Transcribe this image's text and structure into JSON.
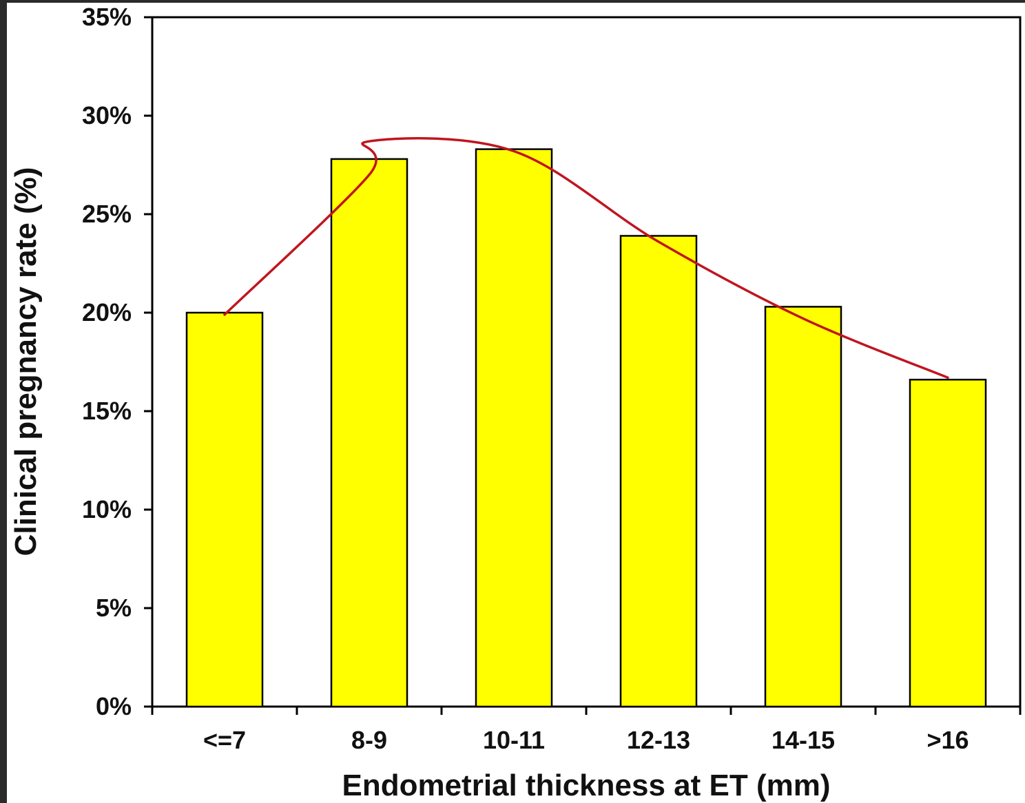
{
  "chart_data": {
    "type": "bar",
    "title": "",
    "xlabel": "Endometrial thickness at ET (mm)",
    "ylabel": "Clinical pregnancy rate (%)",
    "categories": [
      "<=7",
      "8-9",
      "10-11",
      "12-13",
      "14-15",
      ">16"
    ],
    "values": [
      20.0,
      27.8,
      28.3,
      23.9,
      20.3,
      16.6
    ],
    "ylim": [
      0,
      35
    ],
    "yticks": [
      0,
      5,
      10,
      15,
      20,
      25,
      30,
      35
    ],
    "ytick_labels": [
      "0%",
      "5%",
      "10%",
      "15%",
      "20%",
      "25%",
      "30%",
      "35%"
    ],
    "trend_line": {
      "type": "smooth curve",
      "x": [
        "<=7",
        "8-9",
        "9.5",
        "10-11",
        "12-13",
        "14-15",
        ">16"
      ],
      "y": [
        19.9,
        27.0,
        28.7,
        28.2,
        23.6,
        19.7,
        16.7
      ]
    },
    "grid": false,
    "legend": "none",
    "colors": {
      "bar": "#ffff00",
      "bar_edge": "#000000",
      "trend": "#c0151f",
      "axis": "#000000"
    }
  }
}
